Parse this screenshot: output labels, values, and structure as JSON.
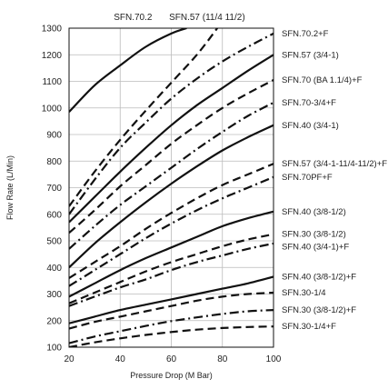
{
  "chart_data": {
    "type": "line",
    "title": "",
    "xlabel": "Pressure Drop (M Bar)",
    "ylabel": "Flow Rate (L/Min)",
    "xlim": [
      20,
      100
    ],
    "ylim": [
      100,
      1300
    ],
    "x_ticks": [
      20,
      40,
      60,
      80,
      100
    ],
    "y_ticks": [
      100,
      200,
      300,
      400,
      500,
      600,
      700,
      800,
      900,
      1000,
      1100,
      1200,
      1300
    ],
    "grid": true,
    "top_labels": [
      "SFN.70.2",
      "SFN.57 (11/4 11/2)"
    ],
    "series": [
      {
        "name": "SFN.70.2",
        "style": "solid",
        "x": [
          20,
          30,
          40,
          50,
          60,
          66
        ],
        "y": [
          985,
          1085,
          1160,
          1230,
          1280,
          1300
        ]
      },
      {
        "name": "SFN.57 (11/4 11/2)",
        "style": "dashed",
        "x": [
          20,
          30,
          40,
          50,
          60,
          70,
          78
        ],
        "y": [
          630,
          760,
          880,
          990,
          1095,
          1200,
          1300
        ]
      },
      {
        "name": "SFN.70.2+F",
        "style": "dashdot",
        "x": [
          20,
          30,
          40,
          50,
          60,
          70,
          80,
          90,
          100
        ],
        "y": [
          600,
          730,
          850,
          945,
          1035,
          1110,
          1175,
          1230,
          1280
        ]
      },
      {
        "name": "SFN.57 (3/4-1)",
        "style": "solid",
        "x": [
          20,
          30,
          40,
          50,
          60,
          70,
          80,
          90,
          100
        ],
        "y": [
          570,
          665,
          760,
          850,
          935,
          1010,
          1075,
          1140,
          1200
        ]
      },
      {
        "name": "SFN.70 (BA 1.1/4)+F",
        "style": "dashed",
        "x": [
          20,
          30,
          40,
          50,
          60,
          70,
          80,
          90,
          100
        ],
        "y": [
          530,
          615,
          705,
          785,
          865,
          935,
          1000,
          1055,
          1105
        ]
      },
      {
        "name": "SFN.70-3/4+F",
        "style": "dashdot",
        "x": [
          20,
          30,
          40,
          50,
          60,
          70,
          80,
          90,
          100
        ],
        "y": [
          470,
          555,
          635,
          705,
          775,
          845,
          910,
          970,
          1020
        ]
      },
      {
        "name": "SFN.40 (3/4-1)",
        "style": "solid",
        "x": [
          20,
          30,
          40,
          50,
          60,
          70,
          80,
          90,
          100
        ],
        "y": [
          400,
          490,
          570,
          645,
          715,
          780,
          840,
          890,
          935
        ]
      },
      {
        "name": "SFN.57 (3/4-1-11/4-11/2)+F",
        "style": "dashed",
        "x": [
          20,
          30,
          40,
          50,
          60,
          70,
          80,
          90,
          100
        ],
        "y": [
          360,
          420,
          480,
          545,
          605,
          660,
          710,
          750,
          790
        ]
      },
      {
        "name": "SFN.70PF+F",
        "style": "dashdot",
        "x": [
          20,
          30,
          40,
          50,
          60,
          70,
          80,
          90,
          100
        ],
        "y": [
          330,
          390,
          450,
          510,
          565,
          615,
          660,
          700,
          740
        ]
      },
      {
        "name": "SFN.40 (3/8-1/2)",
        "style": "solid",
        "x": [
          20,
          30,
          40,
          50,
          60,
          70,
          80,
          90,
          100
        ],
        "y": [
          290,
          340,
          390,
          435,
          475,
          515,
          555,
          585,
          610
        ]
      },
      {
        "name": "SFN.30 (3/8-1/2)",
        "style": "dashed",
        "x": [
          20,
          30,
          40,
          50,
          60,
          70,
          80,
          90,
          100
        ],
        "y": [
          265,
          305,
          345,
          385,
          420,
          450,
          480,
          505,
          525
        ]
      },
      {
        "name": "SFN.40 (3/4-1)+F",
        "style": "dashdot",
        "x": [
          20,
          30,
          40,
          50,
          60,
          70,
          80,
          90,
          100
        ],
        "y": [
          255,
          290,
          325,
          355,
          390,
          420,
          445,
          470,
          490
        ]
      },
      {
        "name": "SFN.40 (3/8-1/2)+F",
        "style": "solid",
        "x": [
          20,
          30,
          40,
          50,
          60,
          70,
          80,
          90,
          100
        ],
        "y": [
          190,
          215,
          240,
          260,
          280,
          300,
          320,
          340,
          365
        ]
      },
      {
        "name": "SFN.30-1/4",
        "style": "dashed",
        "x": [
          20,
          30,
          40,
          50,
          60,
          70,
          80,
          90,
          100
        ],
        "y": [
          170,
          195,
          215,
          235,
          255,
          275,
          290,
          300,
          305
        ]
      },
      {
        "name": "SFN.30 (3/8-1/2)+F",
        "style": "dashdot",
        "x": [
          20,
          30,
          40,
          50,
          60,
          70,
          80,
          90,
          100
        ],
        "y": [
          115,
          140,
          160,
          180,
          198,
          212,
          225,
          235,
          240
        ]
      },
      {
        "name": "SFN.30-1/4+F",
        "style": "dashed",
        "x": [
          20,
          30,
          40,
          50,
          60,
          70,
          80,
          90,
          100
        ],
        "y": [
          100,
          118,
          133,
          146,
          157,
          166,
          172,
          176,
          178
        ]
      }
    ]
  }
}
